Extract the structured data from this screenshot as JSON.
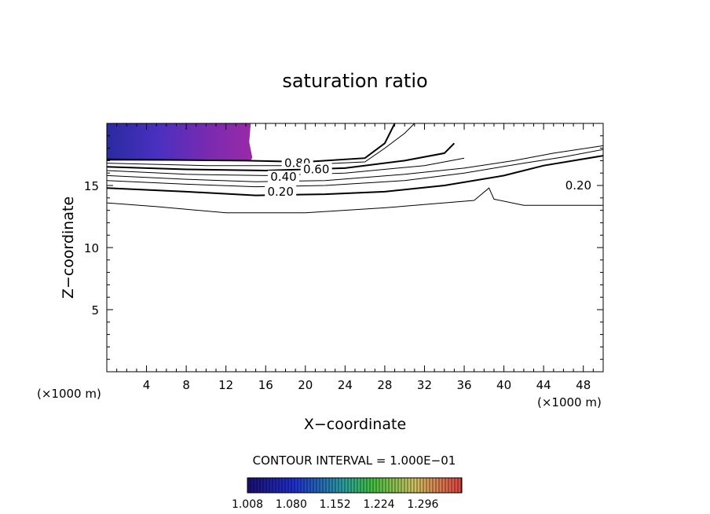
{
  "chart_data": {
    "type": "contour",
    "title": "saturation ratio",
    "xlabel": "X−coordinate",
    "ylabel": "Z−coordinate",
    "x_unit_left": "(×1000 m)",
    "x_unit_right": "(×1000 m)",
    "xlim": [
      0,
      50
    ],
    "ylim": [
      0,
      20
    ],
    "x_ticks": [
      4,
      8,
      12,
      16,
      20,
      24,
      28,
      32,
      36,
      40,
      44,
      48
    ],
    "y_ticks": [
      5,
      10,
      15
    ],
    "contour_interval_text": "CONTOUR INTERVAL = 1.000E−01",
    "contour_labels": [
      {
        "text": "0.80",
        "x": 19.2,
        "z": 16.6
      },
      {
        "text": "0.60",
        "x": 21.1,
        "z": 16.1
      },
      {
        "text": "0.40",
        "x": 17.8,
        "z": 15.5
      },
      {
        "text": "0.20",
        "x": 17.5,
        "z": 14.3
      },
      {
        "text": "0.20",
        "x": 47.5,
        "z": 14.8
      }
    ],
    "contour_lines": [
      {
        "level": 0.1,
        "bold": false,
        "points": [
          [
            0,
            13.6
          ],
          [
            5,
            13.3
          ],
          [
            12,
            12.8
          ],
          [
            20,
            12.8
          ],
          [
            28,
            13.2
          ],
          [
            34,
            13.6
          ],
          [
            37,
            13.8
          ],
          [
            38.5,
            14.8
          ],
          [
            39,
            13.9
          ],
          [
            42,
            13.4
          ],
          [
            50,
            13.4
          ]
        ]
      },
      {
        "level": 0.2,
        "bold": true,
        "points": [
          [
            0,
            14.8
          ],
          [
            8,
            14.5
          ],
          [
            15,
            14.2
          ],
          [
            22,
            14.3
          ],
          [
            28,
            14.5
          ],
          [
            34,
            15.0
          ],
          [
            40,
            15.8
          ],
          [
            44,
            16.6
          ],
          [
            50,
            17.4
          ]
        ]
      },
      {
        "level": 0.3,
        "bold": false,
        "points": [
          [
            0,
            15.4
          ],
          [
            8,
            15.1
          ],
          [
            15,
            14.9
          ],
          [
            22,
            15.0
          ],
          [
            30,
            15.4
          ],
          [
            36,
            16.0
          ],
          [
            42,
            16.8
          ],
          [
            46,
            17.3
          ],
          [
            50,
            17.9
          ]
        ]
      },
      {
        "level": 0.4,
        "bold": false,
        "points": [
          [
            0,
            15.8
          ],
          [
            8,
            15.5
          ],
          [
            15,
            15.3
          ],
          [
            22,
            15.4
          ],
          [
            30,
            15.9
          ],
          [
            36,
            16.4
          ],
          [
            41,
            17.0
          ],
          [
            45,
            17.6
          ],
          [
            50,
            18.2
          ]
        ]
      },
      {
        "level": 0.5,
        "bold": false,
        "points": [
          [
            0,
            16.2
          ],
          [
            8,
            15.9
          ],
          [
            16,
            15.8
          ],
          [
            24,
            16.0
          ],
          [
            32,
            16.6
          ],
          [
            36,
            17.2
          ]
        ]
      },
      {
        "level": 0.6,
        "bold": true,
        "points": [
          [
            0,
            16.5
          ],
          [
            8,
            16.3
          ],
          [
            16,
            16.2
          ],
          [
            24,
            16.4
          ],
          [
            30,
            17.0
          ],
          [
            34,
            17.6
          ],
          [
            35,
            18.4
          ]
        ]
      },
      {
        "level": 0.7,
        "bold": false,
        "points": [
          [
            0,
            16.8
          ],
          [
            10,
            16.6
          ],
          [
            18,
            16.6
          ],
          [
            26,
            16.9
          ],
          [
            28,
            18.0
          ],
          [
            30,
            19.2
          ],
          [
            31,
            20.0
          ]
        ]
      },
      {
        "level": 0.8,
        "bold": true,
        "points": [
          [
            0,
            17.1
          ],
          [
            14,
            17.0
          ],
          [
            20,
            16.9
          ],
          [
            26,
            17.2
          ],
          [
            28,
            18.4
          ],
          [
            29,
            20.0
          ]
        ]
      }
    ],
    "shaded_region": {
      "x": [
        0,
        14.5
      ],
      "z": [
        17.0,
        20.0
      ],
      "variable": "saturation ratio"
    },
    "colorbar": {
      "ticks": [
        "1.008",
        "1.080",
        "1.152",
        "1.224",
        "1.296"
      ],
      "min": 1.008,
      "max": 1.36,
      "colors": [
        "#1a1070",
        "#2030d0",
        "#2aa0a0",
        "#40c040",
        "#d0c060",
        "#e04040"
      ]
    }
  }
}
